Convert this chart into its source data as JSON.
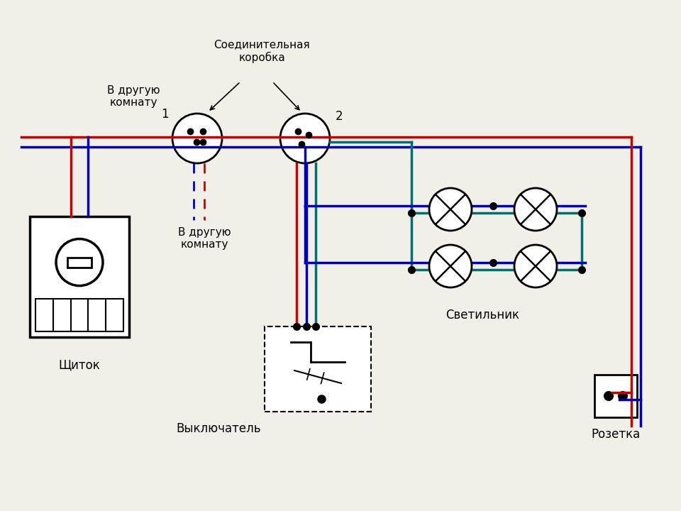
{
  "bg_color": "#f0f0e8",
  "wire_red": "#cc0000",
  "wire_blue": "#0000bb",
  "wire_green": "#007070",
  "black": "#000000",
  "white": "#ffffff",
  "label_shchitok": "Щиток",
  "label_svetilnik": "Светильник",
  "label_rozetka": "Розетка",
  "label_vykluchatel": "Выключатель",
  "label_junction1": "1",
  "label_junction2": "2",
  "label_soedinitelnaya": "Соединительная\nкоробка",
  "label_v_druguyu1": "В другую\nкомнату",
  "label_v_druguyu2": "В другую\nкомнату"
}
